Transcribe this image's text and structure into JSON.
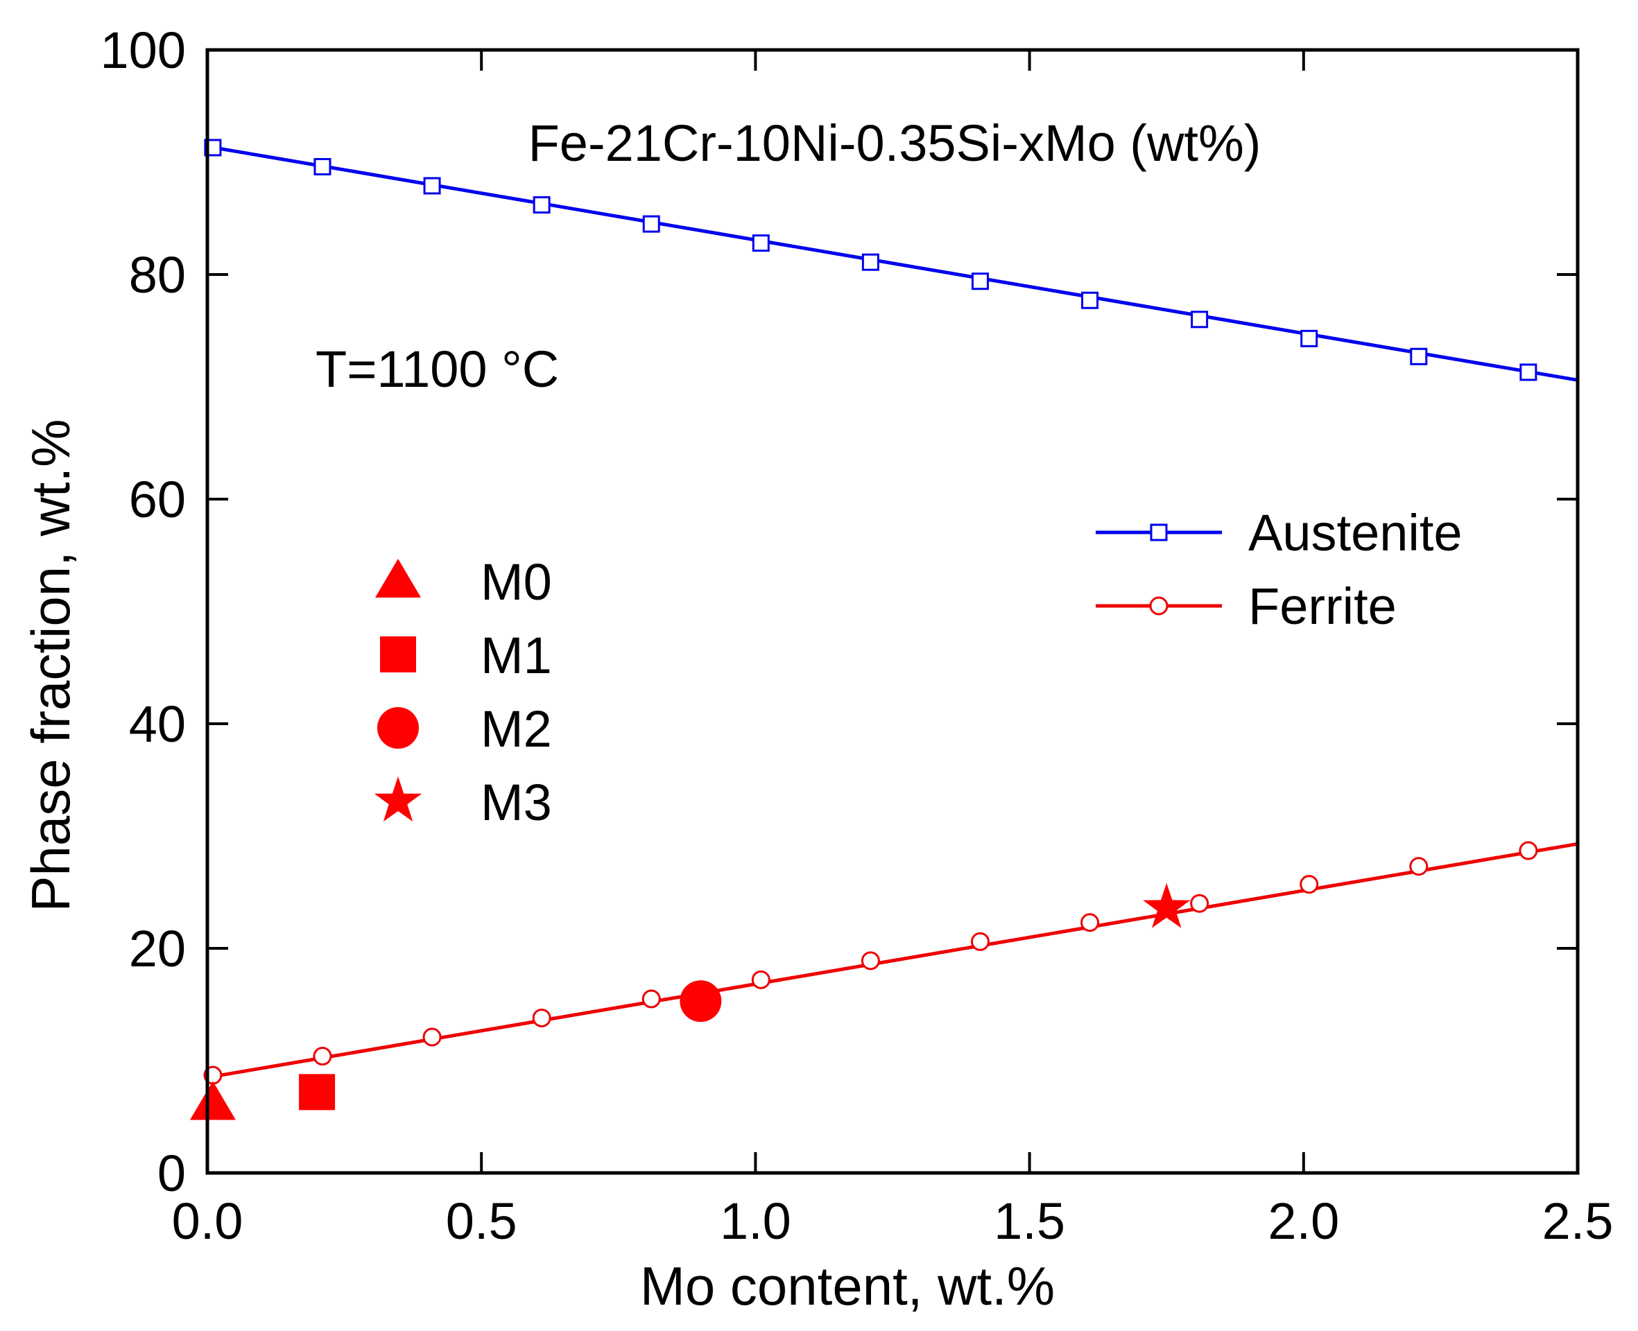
{
  "chart_data": {
    "type": "line",
    "title": "Fe-21Cr-10Ni-0.35Si-xMo (wt%)",
    "annotation": "T=1100 °C",
    "xlabel": "Mo content, wt.%",
    "ylabel": "Phase fraction, wt.%",
    "xlim": [
      0,
      2.5
    ],
    "ylim": [
      0,
      100
    ],
    "xticks": [
      0.0,
      0.5,
      1.0,
      1.5,
      2.0,
      2.5
    ],
    "xtick_labels": [
      "0.0",
      "0.5",
      "1.0",
      "1.5",
      "2.0",
      "2.5"
    ],
    "yticks": [
      0,
      20,
      40,
      60,
      80,
      100
    ],
    "ytick_labels": [
      "0",
      "20",
      "40",
      "60",
      "80",
      "100"
    ],
    "series": [
      {
        "name": "Austenite",
        "color": "#0000ee",
        "marker": "open-square",
        "line_x": [
          0,
          2.5
        ],
        "line_y": [
          91.4,
          70.6
        ],
        "x": [
          0.01,
          0.21,
          0.41,
          0.61,
          0.81,
          1.01,
          1.21,
          1.41,
          1.61,
          1.81,
          2.01,
          2.21,
          2.41
        ],
        "y": [
          91.3,
          89.6,
          87.9,
          86.2,
          84.5,
          82.8,
          81.1,
          79.4,
          77.7,
          76.0,
          74.3,
          72.7,
          71.3
        ]
      },
      {
        "name": "Ferrite",
        "color": "#ee0000",
        "marker": "open-circle",
        "line_x": [
          0,
          2.5
        ],
        "line_y": [
          8.5,
          29.3
        ],
        "x": [
          0.01,
          0.21,
          0.41,
          0.61,
          0.81,
          1.01,
          1.21,
          1.41,
          1.61,
          1.81,
          2.01,
          2.21,
          2.41
        ],
        "y": [
          8.7,
          10.4,
          12.1,
          13.8,
          15.5,
          17.2,
          18.9,
          20.6,
          22.3,
          24.0,
          25.7,
          27.3,
          28.7
        ]
      }
    ],
    "points": [
      {
        "name": "M0",
        "marker": "triangle",
        "x": 0.01,
        "y": 6.2,
        "color": "#ff0000"
      },
      {
        "name": "M1",
        "marker": "square",
        "x": 0.2,
        "y": 7.2,
        "color": "#ff0000"
      },
      {
        "name": "M2",
        "marker": "circle",
        "x": 0.9,
        "y": 15.3,
        "color": "#ff0000"
      },
      {
        "name": "M3",
        "marker": "star",
        "x": 1.75,
        "y": 23.6,
        "color": "#ff0000"
      }
    ],
    "legend": {
      "lines": [
        "Austenite",
        "Ferrite"
      ],
      "lines_position": "middle-right",
      "points": [
        "M0",
        "M1",
        "M2",
        "M3"
      ],
      "points_position": "middle-left"
    }
  }
}
